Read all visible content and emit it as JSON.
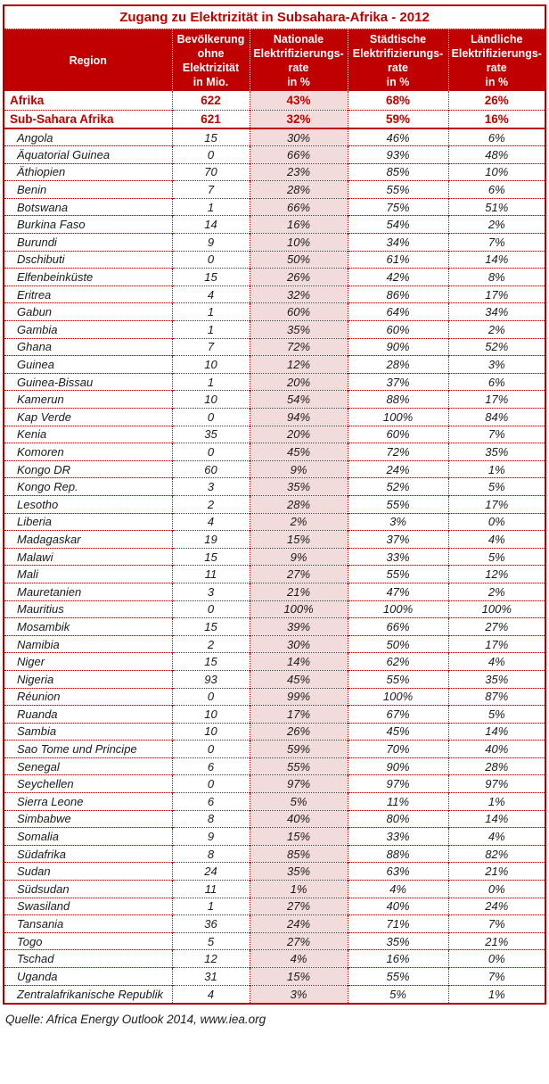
{
  "title": "Zugang zu Elektrizität in Subsahara-Afrika - 2012",
  "header_display": [
    "Region",
    "Bevölkerung\nohne\nElektrizität\nin Mio.",
    "Nationale\nElektrifizierungs-\nrate\nin %",
    "Städtische\nElektrifizierungs-\nrate\nin %",
    "Ländliche\nElektrifizierungs-\nrate\nin %"
  ],
  "source": "Quelle: Africa Energy Outlook 2014, www.iea.org",
  "summary_row_count": 2,
  "colors": {
    "header_red": "#C00000",
    "border_red": "#B00000",
    "text_red": "#C00000",
    "highlight_pink": "#F2DCDB",
    "text_black": "#1A1A1A"
  },
  "chart_data": {
    "type": "table",
    "title": "Zugang zu Elektrizität in Subsahara-Afrika - 2012",
    "columns": [
      "Region",
      "Bevölkerung ohne Elektrizität in Mio.",
      "Nationale Elektrifizierungsrate in %",
      "Städtische Elektrifizierungsrate in %",
      "Ländliche Elektrifizierungsrate in %"
    ],
    "percent_columns": [
      2,
      3,
      4
    ],
    "highlight_column": 2,
    "rows": [
      [
        "Afrika",
        622,
        43,
        68,
        26
      ],
      [
        "Sub-Sahara Afrika",
        621,
        32,
        59,
        16
      ],
      [
        "Angola",
        15,
        30,
        46,
        6
      ],
      [
        "Äquatorial Guinea",
        0,
        66,
        93,
        48
      ],
      [
        "Äthiopien",
        70,
        23,
        85,
        10
      ],
      [
        "Benin",
        7,
        28,
        55,
        6
      ],
      [
        "Botswana",
        1,
        66,
        75,
        51
      ],
      [
        "Burkina Faso",
        14,
        16,
        54,
        2
      ],
      [
        "Burundi",
        9,
        10,
        34,
        7
      ],
      [
        "Dschibuti",
        0,
        50,
        61,
        14
      ],
      [
        "Elfenbeinküste",
        15,
        26,
        42,
        8
      ],
      [
        "Eritrea",
        4,
        32,
        86,
        17
      ],
      [
        "Gabun",
        1,
        60,
        64,
        34
      ],
      [
        "Gambia",
        1,
        35,
        60,
        2
      ],
      [
        "Ghana",
        7,
        72,
        90,
        52
      ],
      [
        "Guinea",
        10,
        12,
        28,
        3
      ],
      [
        "Guinea-Bissau",
        1,
        20,
        37,
        6
      ],
      [
        "Kamerun",
        10,
        54,
        88,
        17
      ],
      [
        "Kap Verde",
        0,
        94,
        100,
        84
      ],
      [
        "Kenia",
        35,
        20,
        60,
        7
      ],
      [
        "Komoren",
        0,
        45,
        72,
        35
      ],
      [
        "Kongo DR",
        60,
        9,
        24,
        1
      ],
      [
        "Kongo Rep.",
        3,
        35,
        52,
        5
      ],
      [
        "Lesotho",
        2,
        28,
        55,
        17
      ],
      [
        "Liberia",
        4,
        2,
        3,
        0
      ],
      [
        "Madagaskar",
        19,
        15,
        37,
        4
      ],
      [
        "Malawi",
        15,
        9,
        33,
        5
      ],
      [
        "Mali",
        11,
        27,
        55,
        12
      ],
      [
        "Mauretanien",
        3,
        21,
        47,
        2
      ],
      [
        "Mauritius",
        0,
        100,
        100,
        100
      ],
      [
        "Mosambik",
        15,
        39,
        66,
        27
      ],
      [
        "Namibia",
        2,
        30,
        50,
        17
      ],
      [
        "Niger",
        15,
        14,
        62,
        4
      ],
      [
        "Nigeria",
        93,
        45,
        55,
        35
      ],
      [
        "Réunion",
        0,
        99,
        100,
        87
      ],
      [
        "Ruanda",
        10,
        17,
        67,
        5
      ],
      [
        "Sambia",
        10,
        26,
        45,
        14
      ],
      [
        "Sao Tome und Principe",
        0,
        59,
        70,
        40
      ],
      [
        "Senegal",
        6,
        55,
        90,
        28
      ],
      [
        "Seychellen",
        0,
        97,
        97,
        97
      ],
      [
        "Sierra Leone",
        6,
        5,
        11,
        1
      ],
      [
        "Simbabwe",
        8,
        40,
        80,
        14
      ],
      [
        "Somalia",
        9,
        15,
        33,
        4
      ],
      [
        "Südafrika",
        8,
        85,
        88,
        82
      ],
      [
        "Sudan",
        24,
        35,
        63,
        21
      ],
      [
        "Südsudan",
        11,
        1,
        4,
        0
      ],
      [
        "Swasiland",
        1,
        27,
        40,
        24
      ],
      [
        "Tansania",
        36,
        24,
        71,
        7
      ],
      [
        "Togo",
        5,
        27,
        35,
        21
      ],
      [
        "Tschad",
        12,
        4,
        16,
        0
      ],
      [
        "Uganda",
        31,
        15,
        55,
        7
      ],
      [
        "Zentralafrikanische Republik",
        4,
        3,
        5,
        1
      ]
    ]
  }
}
